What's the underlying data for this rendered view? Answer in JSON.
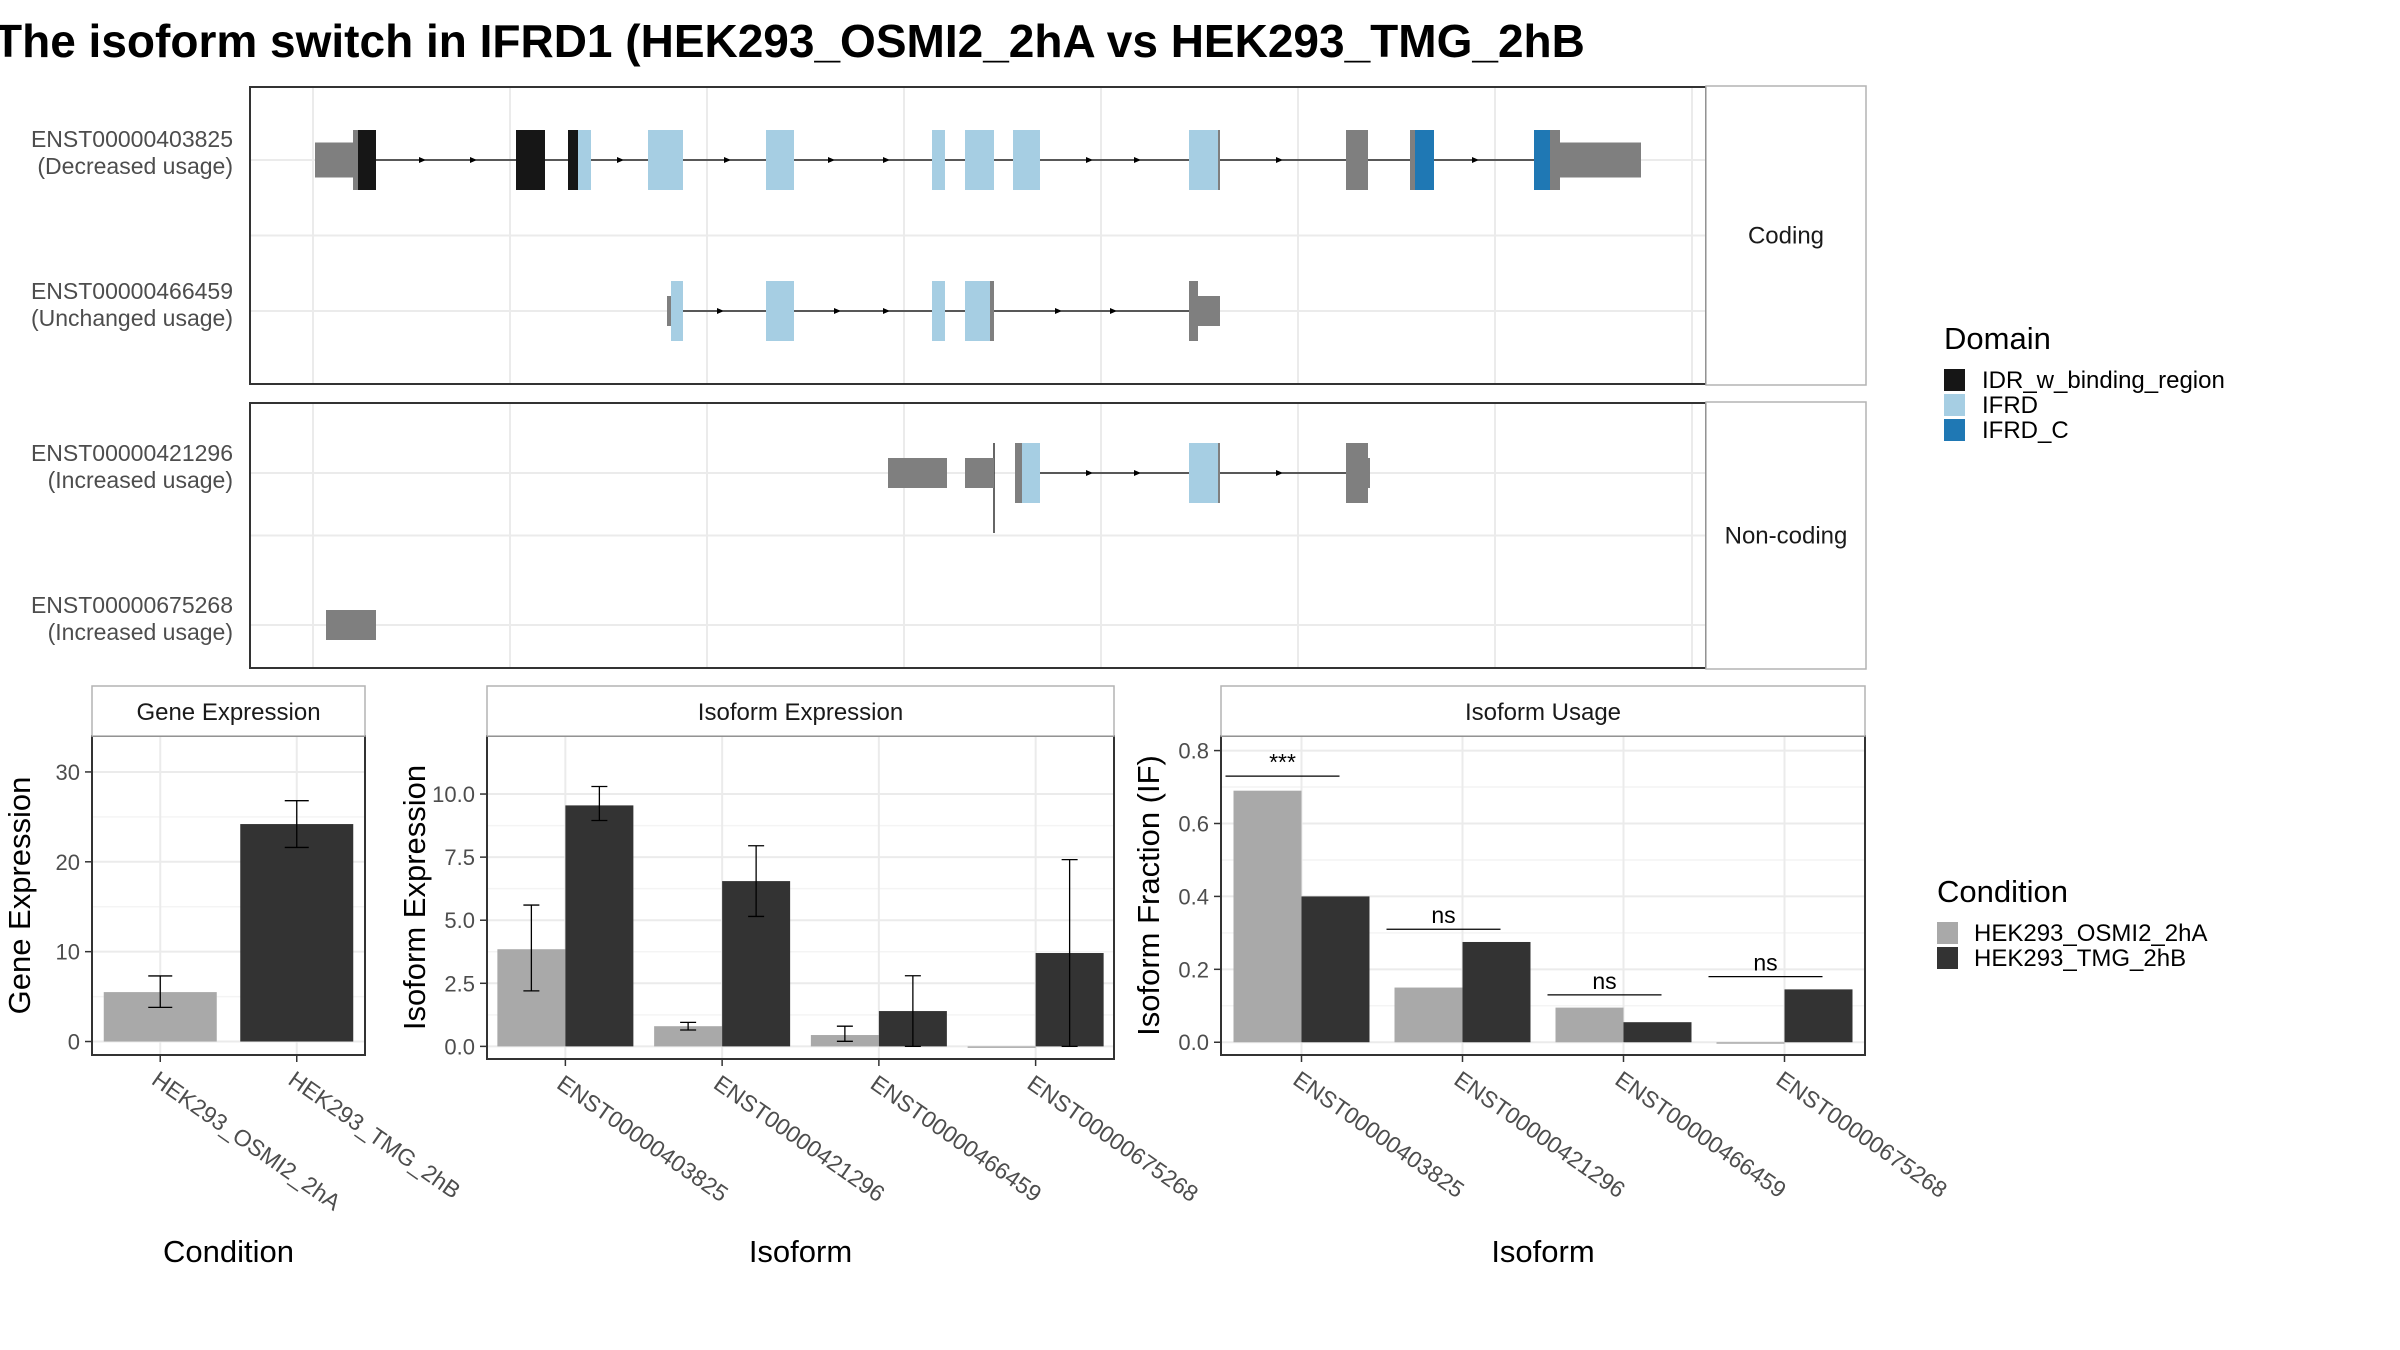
{
  "title": "The isoform switch in IFRD1 (HEK293_OSMI2_2hA vs HEK293_TMG_2hB",
  "colors": {
    "IDR_w_binding_region": "#161616",
    "IFRD": "#a6cee3",
    "IFRD_C": "#1f78b4",
    "no_domain": "#7f7f7f",
    "HEK293_OSMI2_2hA": "#a9a9a9",
    "HEK293_TMG_2hB": "#333333"
  },
  "structure": {
    "groups": [
      {
        "label": "Coding",
        "isoforms": [
          {
            "id": "ENST00000403825",
            "usage": "(Decreased usage)"
          },
          {
            "id": "ENST00000466459",
            "usage": "(Unchanged usage)"
          }
        ]
      },
      {
        "label": "Non-coding",
        "isoforms": [
          {
            "id": "ENST00000421296",
            "usage": "(Increased usage)"
          },
          {
            "id": "ENST00000675268",
            "usage": "(Increased usage)"
          }
        ]
      }
    ]
  },
  "domain_legend": {
    "title": "Domain",
    "items": [
      {
        "key": "IDR_w_binding_region",
        "label": "IDR_w_binding_region"
      },
      {
        "key": "IFRD",
        "label": "IFRD"
      },
      {
        "key": "IFRD_C",
        "label": "IFRD_C"
      }
    ]
  },
  "condition_legend": {
    "title": "Condition",
    "items": [
      {
        "key": "HEK293_OSMI2_2hA",
        "label": "HEK293_OSMI2_2hA"
      },
      {
        "key": "HEK293_TMG_2hB",
        "label": "HEK293_TMG_2hB"
      }
    ]
  },
  "chart_data": [
    {
      "type": "bar",
      "title": "Gene Expression",
      "xlabel": "Condition",
      "ylabel": "Gene Expression",
      "categories": [
        "HEK293_OSMI2_2hA",
        "HEK293_TMG_2hB"
      ],
      "values": [
        5.5,
        24.2
      ],
      "errors": [
        [
          3.8,
          7.3
        ],
        [
          21.6,
          26.8
        ]
      ],
      "ylim": [
        -1.5,
        34
      ],
      "yticks": [
        0,
        10,
        20,
        30
      ],
      "ytick_labels": [
        "0",
        "10",
        "20",
        "30"
      ]
    },
    {
      "type": "bar",
      "title": "Isoform Expression",
      "xlabel": "Isoform",
      "ylabel": "Isoform Expression",
      "categories": [
        "ENST00000403825",
        "ENST00000421296",
        "ENST00000466459",
        "ENST00000675268"
      ],
      "series": [
        {
          "name": "HEK293_OSMI2_2hA",
          "values": [
            3.85,
            0.8,
            0.45,
            0.0
          ],
          "errors": [
            [
              2.2,
              5.6
            ],
            [
              0.65,
              0.95
            ],
            [
              0.2,
              0.8
            ],
            [
              0.0,
              0.0
            ]
          ]
        },
        {
          "name": "HEK293_TMG_2hB",
          "values": [
            9.55,
            6.55,
            1.4,
            3.7
          ],
          "errors": [
            [
              8.95,
              10.3
            ],
            [
              5.15,
              7.95
            ],
            [
              0.0,
              2.8
            ],
            [
              0.0,
              7.4
            ]
          ]
        }
      ],
      "ylim": [
        -0.5,
        12.3
      ],
      "yticks": [
        0,
        2.5,
        5,
        7.5,
        10
      ],
      "ytick_labels": [
        "0.0",
        "2.5",
        "5.0",
        "7.5",
        "10.0"
      ]
    },
    {
      "type": "bar",
      "title": "Isoform Usage",
      "xlabel": "Isoform",
      "ylabel": "Isoform Fraction (IF)",
      "categories": [
        "ENST00000403825",
        "ENST00000421296",
        "ENST00000466459",
        "ENST00000675268"
      ],
      "series": [
        {
          "name": "HEK293_OSMI2_2hA",
          "values": [
            0.69,
            0.15,
            0.095,
            0.0
          ]
        },
        {
          "name": "HEK293_TMG_2hB",
          "values": [
            0.4,
            0.275,
            0.055,
            0.145
          ]
        }
      ],
      "significance": [
        "***",
        "ns",
        "ns",
        "ns"
      ],
      "significance_y": [
        0.73,
        0.31,
        0.13,
        0.18
      ],
      "ylim": [
        -0.035,
        0.84
      ],
      "yticks": [
        0,
        0.2,
        0.4,
        0.6,
        0.8
      ],
      "ytick_labels": [
        "0.0",
        "0.2",
        "0.4",
        "0.6",
        "0.8"
      ]
    }
  ]
}
